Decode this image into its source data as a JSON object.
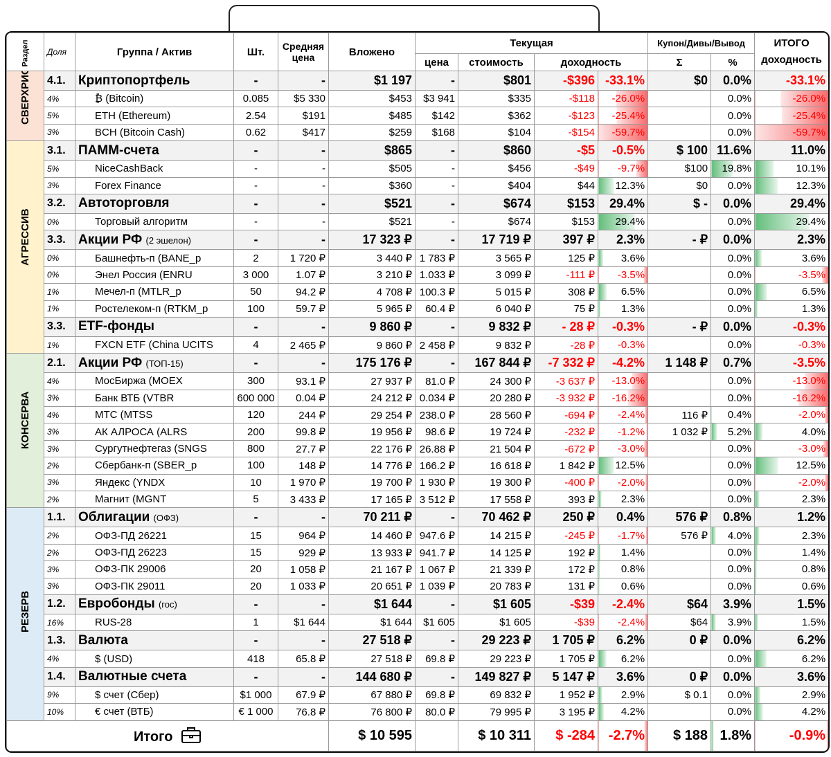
{
  "header": {
    "section": "Раздел",
    "share": "Доля",
    "name": "Группа / Актив",
    "qty": "Шт.",
    "avg_price": "Средняя цена",
    "invested": "Вложено",
    "current": "Текущая",
    "price": "цена",
    "value": "стоимость",
    "return": "доходность",
    "coupon": "Купон/Дивы/Вывод",
    "coupon_sum": "Σ",
    "coupon_pct": "%",
    "total": "ИТОГО доходность"
  },
  "sections": [
    {
      "name": "СВЕРХРИСК",
      "groups": [
        {
          "code": "4.1.",
          "name": "Криптопортфель",
          "cells": [
            "-",
            "-",
            "$1 197",
            "-",
            "$801",
            "-$396",
            "-33.1%",
            "$0",
            "0.0%",
            "-33.1%"
          ],
          "assets": [
            {
              "share": "4%",
              "name": "₿ (Bitcoin)",
              "cells": [
                "0.085",
                "$5 330",
                "$453",
                "$3 941",
                "$335",
                "-$118",
                "-26.0%",
                null,
                "0.0%",
                "-26.0%"
              ]
            },
            {
              "share": "5%",
              "name": "ETH (Ethereum)",
              "cells": [
                "2.54",
                "$191",
                "$485",
                "$142",
                "$362",
                "-$123",
                "-25.4%",
                null,
                "0.0%",
                "-25.4%"
              ]
            },
            {
              "share": "3%",
              "name": "BCH (Bitcoin Cash)",
              "cells": [
                "0.62",
                "$417",
                "$259",
                "$168",
                "$104",
                "-$154",
                "-59.7%",
                null,
                "0.0%",
                "-59.7%"
              ]
            }
          ]
        }
      ]
    },
    {
      "name": "АГРЕССИВ",
      "groups": [
        {
          "code": "3.1.",
          "name": "ПАММ-счета",
          "cells": [
            "-",
            "-",
            "$865",
            "-",
            "$860",
            "-$5",
            "-0.5%",
            "$ 100",
            "11.6%",
            "11.0%"
          ],
          "assets": [
            {
              "share": "5%",
              "name": "NiceCashBack",
              "cells": [
                "-",
                "-",
                "$505",
                "-",
                "$456",
                "-$49",
                "-9.7%",
                "$100",
                "19.8%",
                "10.1%"
              ]
            },
            {
              "share": "3%",
              "name": "Forex Finance",
              "cells": [
                "-",
                "-",
                "$360",
                "-",
                "$404",
                "$44",
                "12.3%",
                "$0",
                "0.0%",
                "12.3%"
              ]
            }
          ]
        },
        {
          "code": "3.2.",
          "name": "Автоторговля",
          "cells": [
            "-",
            "-",
            "$521",
            "-",
            "$674",
            "$153",
            "29.4%",
            "$ -",
            "0.0%",
            "29.4%"
          ],
          "assets": [
            {
              "share": "0%",
              "name": "Торговый алгоритм",
              "cells": [
                "-",
                "-",
                "$521",
                "-",
                "$674",
                "$153",
                "29.4%",
                null,
                "0.0%",
                "29.4%"
              ]
            }
          ]
        },
        {
          "code": "3.3.",
          "name": "Акции РФ",
          "note": "(2 эшелон)",
          "cells": [
            "-",
            "-",
            "17 323 ₽",
            "-",
            "17 719 ₽",
            "397 ₽",
            "2.3%",
            "- ₽",
            "0.0%",
            "2.3%"
          ],
          "assets": [
            {
              "share": "0%",
              "name": "Башнефть-п (BANE_p",
              "cells": [
                "2",
                "1 720 ₽",
                "3 440 ₽",
                "1 783 ₽",
                "3 565 ₽",
                "125 ₽",
                "3.6%",
                null,
                "0.0%",
                "3.6%"
              ]
            },
            {
              "share": "0%",
              "name": "Энел Россия (ENRU",
              "cells": [
                "3 000",
                "1.07 ₽",
                "3 210 ₽",
                "1.033 ₽",
                "3 099 ₽",
                "-111 ₽",
                "-3.5%",
                null,
                "0.0%",
                "-3.5%"
              ]
            },
            {
              "share": "1%",
              "name": "Мечел-п (MTLR_p",
              "cells": [
                "50",
                "94.2 ₽",
                "4 708 ₽",
                "100.3 ₽",
                "5 015 ₽",
                "308 ₽",
                "6.5%",
                null,
                "0.0%",
                "6.5%"
              ]
            },
            {
              "share": "1%",
              "name": "Ростелеком-п (RTKM_p",
              "cells": [
                "100",
                "59.7 ₽",
                "5 965 ₽",
                "60.4 ₽",
                "6 040 ₽",
                "75 ₽",
                "1.3%",
                null,
                "0.0%",
                "1.3%"
              ]
            }
          ]
        },
        {
          "code": "3.3.",
          "name": "ETF-фонды",
          "cells": [
            "-",
            "-",
            "9 860 ₽",
            "-",
            "9 832 ₽",
            "- 28 ₽",
            "-0.3%",
            "- ₽",
            "0.0%",
            "-0.3%"
          ],
          "assets": [
            {
              "share": "1%",
              "name": "FXCN ETF (China UCITS",
              "cells": [
                "4",
                "2 465 ₽",
                "9 860 ₽",
                "2 458 ₽",
                "9 832 ₽",
                "-28 ₽",
                "-0.3%",
                null,
                "0.0%",
                "-0.3%"
              ]
            }
          ]
        }
      ]
    },
    {
      "name": "КОНСЕРВА",
      "groups": [
        {
          "code": "2.1.",
          "name": "Акции РФ",
          "note": "(ТОП-15)",
          "cells": [
            "-",
            "-",
            "175 176 ₽",
            "-",
            "167 844 ₽",
            "-7 332 ₽",
            "-4.2%",
            "1 148 ₽",
            "0.7%",
            "-3.5%"
          ],
          "assets": [
            {
              "share": "4%",
              "name": "МосБиржа (MOEX",
              "cells": [
                "300",
                "93.1 ₽",
                "27 937 ₽",
                "81.0 ₽",
                "24 300 ₽",
                "-3 637 ₽",
                "-13.0%",
                null,
                "0.0%",
                "-13.0%"
              ]
            },
            {
              "share": "3%",
              "name": "Банк ВТБ (VTBR",
              "cells": [
                "600 000",
                "0.04 ₽",
                "24 212 ₽",
                "0.034 ₽",
                "20 280 ₽",
                "-3 932 ₽",
                "-16.2%",
                null,
                "0.0%",
                "-16.2%"
              ]
            },
            {
              "share": "4%",
              "name": "МТС (MTSS",
              "cells": [
                "120",
                "244 ₽",
                "29 254 ₽",
                "238.0 ₽",
                "28 560 ₽",
                "-694 ₽",
                "-2.4%",
                "116 ₽",
                "0.4%",
                "-2.0%"
              ]
            },
            {
              "share": "3%",
              "name": "АК АЛРОСА (ALRS",
              "cells": [
                "200",
                "99.8 ₽",
                "19 956 ₽",
                "98.6 ₽",
                "19 724 ₽",
                "-232 ₽",
                "-1.2%",
                "1 032 ₽",
                "5.2%",
                "4.0%"
              ]
            },
            {
              "share": "3%",
              "name": "Сургутнефтегаз (SNGS",
              "cells": [
                "800",
                "27.7 ₽",
                "22 176 ₽",
                "26.88 ₽",
                "21 504 ₽",
                "-672 ₽",
                "-3.0%",
                null,
                "0.0%",
                "-3.0%"
              ]
            },
            {
              "share": "2%",
              "name": "Сбербанк-п (SBER_p",
              "cells": [
                "100",
                "148 ₽",
                "14 776 ₽",
                "166.2 ₽",
                "16 618 ₽",
                "1 842 ₽",
                "12.5%",
                null,
                "0.0%",
                "12.5%"
              ]
            },
            {
              "share": "3%",
              "name": "Яндекс (YNDX",
              "cells": [
                "10",
                "1 970 ₽",
                "19 700 ₽",
                "1 930 ₽",
                "19 300 ₽",
                "-400 ₽",
                "-2.0%",
                null,
                "0.0%",
                "-2.0%"
              ]
            },
            {
              "share": "2%",
              "name": "Магнит (MGNT",
              "cells": [
                "5",
                "3 433 ₽",
                "17 165 ₽",
                "3 512 ₽",
                "17 558 ₽",
                "393 ₽",
                "2.3%",
                null,
                "0.0%",
                "2.3%"
              ]
            }
          ]
        }
      ]
    },
    {
      "name": "РЕЗЕРВ",
      "groups": [
        {
          "code": "1.1.",
          "name": "Облигации",
          "note": "(ОФЗ)",
          "cells": [
            "-",
            "-",
            "70 211 ₽",
            "-",
            "70 462 ₽",
            "250 ₽",
            "0.4%",
            "576 ₽",
            "0.8%",
            "1.2%"
          ],
          "assets": [
            {
              "share": "2%",
              "name": "ОФЗ-ПД 26221",
              "cells": [
                "15",
                "964 ₽",
                "14 460 ₽",
                "947.6 ₽",
                "14 215 ₽",
                "-245 ₽",
                "-1.7%",
                "576 ₽",
                "4.0%",
                "2.3%"
              ]
            },
            {
              "share": "2%",
              "name": "ОФЗ-ПД 26223",
              "cells": [
                "15",
                "929 ₽",
                "13 933 ₽",
                "941.7 ₽",
                "14 125 ₽",
                "192 ₽",
                "1.4%",
                null,
                "0.0%",
                "1.4%"
              ]
            },
            {
              "share": "3%",
              "name": "ОФЗ-ПК 29006",
              "cells": [
                "20",
                "1 058 ₽",
                "21 167 ₽",
                "1 067 ₽",
                "21 339 ₽",
                "172 ₽",
                "0.8%",
                null,
                "0.0%",
                "0.8%"
              ]
            },
            {
              "share": "3%",
              "name": "ОФЗ-ПК 29011",
              "cells": [
                "20",
                "1 033 ₽",
                "20 651 ₽",
                "1 039 ₽",
                "20 783 ₽",
                "131 ₽",
                "0.6%",
                null,
                "0.0%",
                "0.6%"
              ]
            }
          ]
        },
        {
          "code": "1.2.",
          "name": "Евробонды",
          "note": "(гос)",
          "cells": [
            "-",
            "-",
            "$1 644",
            "-",
            "$1 605",
            "-$39",
            "-2.4%",
            "$64",
            "3.9%",
            "1.5%"
          ],
          "assets": [
            {
              "share": "16%",
              "name": "RUS-28",
              "cells": [
                "1",
                "$1 644",
                "$1 644",
                "$1 605",
                "$1 605",
                "-$39",
                "-2.4%",
                "$64",
                "3.9%",
                "1.5%"
              ]
            }
          ]
        },
        {
          "code": "1.3.",
          "name": "Валюта",
          "cells": [
            "-",
            "-",
            "27 518 ₽",
            "-",
            "29 223 ₽",
            "1 705 ₽",
            "6.2%",
            "0 ₽",
            "0.0%",
            "6.2%"
          ],
          "assets": [
            {
              "share": "4%",
              "name": "$ (USD)",
              "cells": [
                "418",
                "65.8 ₽",
                "27 518 ₽",
                "69.8 ₽",
                "29 223 ₽",
                "1 705 ₽",
                "6.2%",
                null,
                "0.0%",
                "6.2%"
              ]
            }
          ]
        },
        {
          "code": "1.4.",
          "name": "Валютные счета",
          "cells": [
            "-",
            "-",
            "144 680 ₽",
            "-",
            "149 827 ₽",
            "5 147 ₽",
            "3.6%",
            "0 ₽",
            "0.0%",
            "3.6%"
          ],
          "assets": [
            {
              "share": "9%",
              "name": "$ счет (Сбер)",
              "cells": [
                "$1 000",
                "67.9 ₽",
                "67 880 ₽",
                "69.8 ₽",
                "69 832 ₽",
                "1 952 ₽",
                "2.9%",
                "$ 0.1",
                "0.0%",
                "2.9%"
              ]
            },
            {
              "share": "10%",
              "name": "€ счет (ВТБ)",
              "cells": [
                "€ 1 000",
                "76.8 ₽",
                "76 800 ₽",
                "80.0 ₽",
                "79 995 ₽",
                "3 195 ₽",
                "4.2%",
                null,
                "0.0%",
                "4.2%"
              ]
            }
          ]
        }
      ]
    }
  ],
  "total": {
    "label": "Итого",
    "invested": "$ 10 595",
    "value": "$ 10 311",
    "pnl": "$ -284",
    "pct": "-2.7%",
    "coupon": "$ 188",
    "coupon_pct": "1.8%",
    "total": "-0.9%"
  }
}
